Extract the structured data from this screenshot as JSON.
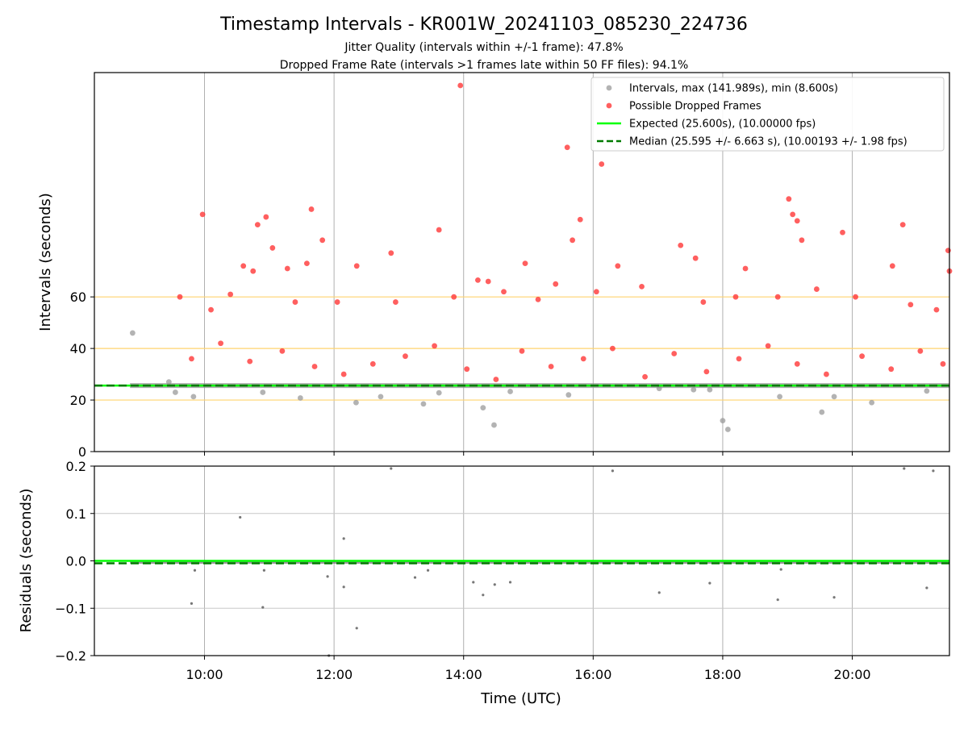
{
  "chart_data": [
    {
      "type": "scatter",
      "title": "Timestamp Intervals - KR001W_20241103_085230_224736",
      "subtitle_line1": "Jitter Quality (intervals within +/-1 frame): 47.8%",
      "subtitle_line2": "Dropped Frame Rate (intervals >1 frames late within 50 FF files): 94.1%",
      "ylabel": "Intervals (seconds)",
      "xlim_hours": [
        8.3,
        21.5
      ],
      "ylim": [
        0,
        147
      ],
      "yticks": [
        "0",
        "20",
        "40",
        "60"
      ],
      "ytick_values": [
        0,
        20,
        40,
        60
      ],
      "reference_lines": [
        20,
        40,
        60
      ],
      "reference_line_color": "#ffd36e",
      "expected_value": 25.6,
      "median_value": 25.595,
      "grid": true,
      "legend_position": "top-right",
      "legend": [
        {
          "label": "Intervals, max (141.989s), min (8.600s)",
          "kind": "dot",
          "color": "#999999"
        },
        {
          "label": "Possible Dropped Frames",
          "kind": "dot",
          "color": "#ff2a2a"
        },
        {
          "label": "Expected (25.600s), (10.00000 fps)",
          "kind": "line",
          "color": "#00ff00"
        },
        {
          "label": "Median (25.595 +/- 6.663 s), (10.00193 +/- 1.98 fps)",
          "kind": "dashed",
          "color": "#007a00"
        }
      ],
      "series": [
        {
          "name": "Intervals, max (141.989s), min (8.600s)",
          "color": "#999999",
          "points": [
            [
              8.89,
              46.0
            ],
            [
              9.45,
              27.0
            ],
            [
              9.55,
              23.0
            ],
            [
              9.83,
              21.3
            ],
            [
              10.9,
              23.0
            ],
            [
              11.48,
              20.8
            ],
            [
              12.34,
              19.0
            ],
            [
              12.72,
              21.3
            ],
            [
              13.38,
              18.5
            ],
            [
              13.62,
              22.8
            ],
            [
              14.3,
              17.0
            ],
            [
              14.47,
              10.3
            ],
            [
              14.72,
              23.3
            ],
            [
              15.62,
              22.0
            ],
            [
              17.02,
              24.5
            ],
            [
              17.55,
              24.0
            ],
            [
              17.8,
              24.0
            ],
            [
              18.0,
              12.0
            ],
            [
              18.08,
              8.6
            ],
            [
              18.88,
              21.3
            ],
            [
              19.53,
              15.3
            ],
            [
              19.72,
              21.3
            ],
            [
              20.3,
              19.0
            ],
            [
              21.15,
              23.5
            ]
          ]
        },
        {
          "name": "Possible Dropped Frames",
          "color": "#ff2a2a",
          "points": [
            [
              9.97,
              92.0
            ],
            [
              10.82,
              88.0
            ],
            [
              10.95,
              91.0
            ],
            [
              11.65,
              94.0
            ],
            [
              11.82,
              82.0
            ],
            [
              11.05,
              79.0
            ],
            [
              10.6,
              72.0
            ],
            [
              10.75,
              70.0
            ],
            [
              11.28,
              71.0
            ],
            [
              11.58,
              73.0
            ],
            [
              12.35,
              72.0
            ],
            [
              12.88,
              77.0
            ],
            [
              13.62,
              86.0
            ],
            [
              13.95,
              141.99
            ],
            [
              14.22,
              66.5
            ],
            [
              14.38,
              66.0
            ],
            [
              14.95,
              73.0
            ],
            [
              15.42,
              65.0
            ],
            [
              15.6,
              118.0
            ],
            [
              15.68,
              82.0
            ],
            [
              15.8,
              90.0
            ],
            [
              16.13,
              111.5
            ],
            [
              16.38,
              72.0
            ],
            [
              17.35,
              80.0
            ],
            [
              17.58,
              75.0
            ],
            [
              18.35,
              71.0
            ],
            [
              19.02,
              98.0
            ],
            [
              19.08,
              92.0
            ],
            [
              19.15,
              89.5
            ],
            [
              19.22,
              82.0
            ],
            [
              19.85,
              85.0
            ],
            [
              20.62,
              72.0
            ],
            [
              20.78,
              88.0
            ],
            [
              21.48,
              78.0
            ],
            [
              21.5,
              70.0
            ],
            [
              9.62,
              60.0
            ],
            [
              10.1,
              55.0
            ],
            [
              10.4,
              61.0
            ],
            [
              11.4,
              58.0
            ],
            [
              12.05,
              58.0
            ],
            [
              12.95,
              58.0
            ],
            [
              13.85,
              60.0
            ],
            [
              14.62,
              62.0
            ],
            [
              15.15,
              59.0
            ],
            [
              16.05,
              62.0
            ],
            [
              16.75,
              64.0
            ],
            [
              17.7,
              58.0
            ],
            [
              18.2,
              60.0
            ],
            [
              18.85,
              60.0
            ],
            [
              19.45,
              63.0
            ],
            [
              20.05,
              60.0
            ],
            [
              20.9,
              57.0
            ],
            [
              21.3,
              55.0
            ],
            [
              9.8,
              36.0
            ],
            [
              10.25,
              42.0
            ],
            [
              10.7,
              35.0
            ],
            [
              11.2,
              39.0
            ],
            [
              11.7,
              33.0
            ],
            [
              12.15,
              30.0
            ],
            [
              12.6,
              34.0
            ],
            [
              13.1,
              37.0
            ],
            [
              13.55,
              41.0
            ],
            [
              14.05,
              32.0
            ],
            [
              14.5,
              28.0
            ],
            [
              14.9,
              39.0
            ],
            [
              15.35,
              33.0
            ],
            [
              15.85,
              36.0
            ],
            [
              16.3,
              40.0
            ],
            [
              16.8,
              29.0
            ],
            [
              17.25,
              38.0
            ],
            [
              17.75,
              31.0
            ],
            [
              18.25,
              36.0
            ],
            [
              18.7,
              41.0
            ],
            [
              19.15,
              34.0
            ],
            [
              19.6,
              30.0
            ],
            [
              20.15,
              37.0
            ],
            [
              20.6,
              32.0
            ],
            [
              21.05,
              39.0
            ],
            [
              21.4,
              34.0
            ]
          ]
        }
      ]
    },
    {
      "type": "scatter",
      "xlabel": "Time (UTC)",
      "ylabel": "Residuals (seconds)",
      "xlim_hours": [
        8.3,
        21.5
      ],
      "ylim": [
        -0.2,
        0.2
      ],
      "yticks": [
        "−0.2",
        "−0.1",
        "0.0",
        "0.1",
        "0.2"
      ],
      "ytick_values": [
        -0.2,
        -0.1,
        0.0,
        0.1,
        0.2
      ],
      "xticks": [
        "10:00",
        "12:00",
        "14:00",
        "16:00",
        "18:00",
        "20:00"
      ],
      "xtick_hours": [
        10,
        12,
        14,
        16,
        18,
        20
      ],
      "expected_value": 0.0,
      "median_value": -0.005,
      "grid": true,
      "series": [
        {
          "color": "#555555",
          "points": [
            [
              10.55,
              0.092
            ],
            [
              12.15,
              0.047
            ],
            [
              12.88,
              0.195
            ],
            [
              16.3,
              0.19
            ],
            [
              20.8,
              0.195
            ],
            [
              21.25,
              0.19
            ],
            [
              9.8,
              -0.09
            ],
            [
              9.85,
              -0.02
            ],
            [
              10.9,
              -0.098
            ],
            [
              10.92,
              -0.02
            ],
            [
              11.9,
              -0.033
            ],
            [
              11.92,
              -0.2
            ],
            [
              12.15,
              -0.055
            ],
            [
              12.35,
              -0.142
            ],
            [
              13.25,
              -0.035
            ],
            [
              13.45,
              -0.02
            ],
            [
              14.15,
              -0.045
            ],
            [
              14.3,
              -0.072
            ],
            [
              14.48,
              -0.05
            ],
            [
              14.72,
              -0.045
            ],
            [
              17.02,
              -0.067
            ],
            [
              17.8,
              -0.047
            ],
            [
              18.85,
              -0.082
            ],
            [
              18.9,
              -0.018
            ],
            [
              19.72,
              -0.077
            ],
            [
              21.15,
              -0.057
            ]
          ]
        }
      ]
    }
  ]
}
